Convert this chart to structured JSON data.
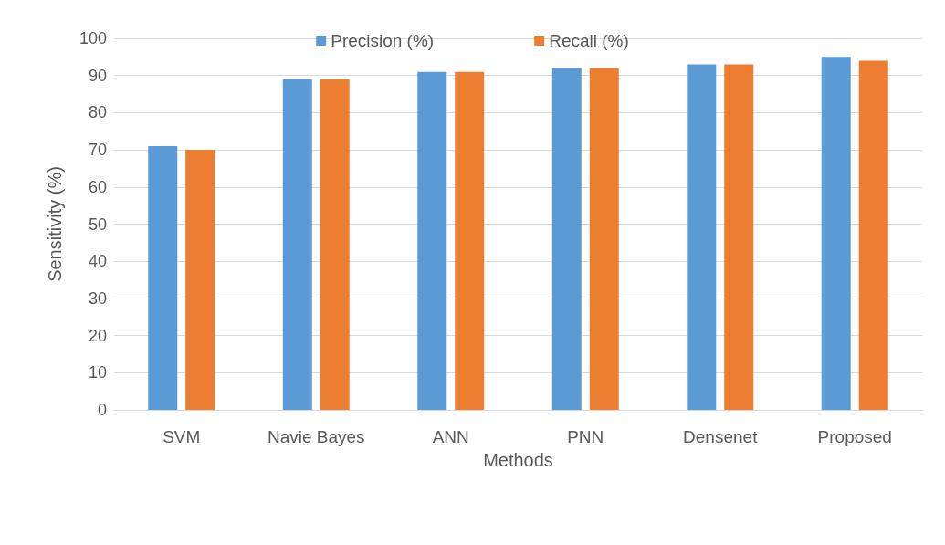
{
  "chart_data": {
    "type": "bar",
    "xlabel": "Methods",
    "ylabel": "Sensitivity (%)",
    "categories": [
      "SVM",
      "Navie Bayes",
      "ANN",
      "PNN",
      "Densenet",
      "Proposed"
    ],
    "series": [
      {
        "name": "Precision (%)",
        "color": "#5b9bd5",
        "values": [
          71,
          89,
          91,
          92,
          93,
          95
        ]
      },
      {
        "name": "Recall (%)",
        "color": "#ed7d31",
        "values": [
          70,
          89,
          91,
          92,
          93,
          94
        ]
      }
    ],
    "ylim": [
      0,
      100
    ],
    "yticks": [
      0,
      10,
      20,
      30,
      40,
      50,
      60,
      70,
      80,
      90,
      100
    ],
    "grid": "y",
    "legend": "top"
  }
}
